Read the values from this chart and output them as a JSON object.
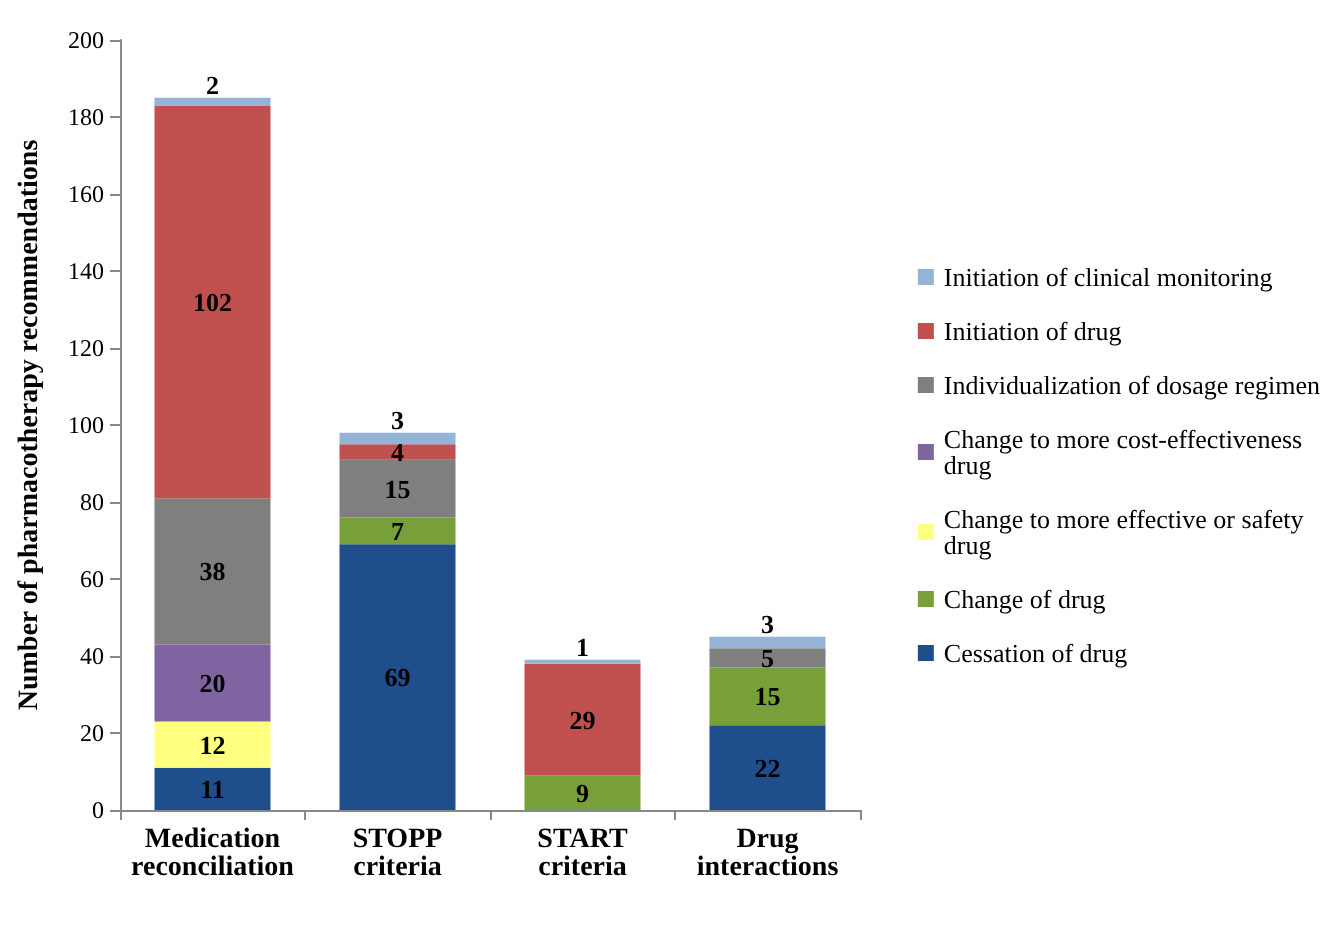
{
  "chart_data": {
    "type": "bar",
    "stacked": true,
    "ylabel": "Number of pharmacotherapy recommendations",
    "categories": [
      "Medication reconciliation",
      "STOPP criteria",
      "START criteria",
      "Drug interactions"
    ],
    "series": [
      {
        "name": "Cessation of drug",
        "color": "#1f4e8c",
        "values": [
          11,
          69,
          null,
          22
        ]
      },
      {
        "name": "Change of drug",
        "color": "#77a03a",
        "values": [
          null,
          7,
          9,
          15
        ]
      },
      {
        "name": "Change to more effective or safety drug",
        "color": "#ffff80",
        "values": [
          12,
          null,
          null,
          null
        ]
      },
      {
        "name": "Change to more cost-effectiveness drug",
        "color": "#8064a2",
        "values": [
          20,
          null,
          null,
          null
        ]
      },
      {
        "name": "Individualization of dosage regimen",
        "color": "#7f7f7f",
        "values": [
          38,
          15,
          null,
          5
        ]
      },
      {
        "name": "Initiation of drug",
        "color": "#c0504d",
        "values": [
          102,
          4,
          29,
          null
        ]
      },
      {
        "name": "Initiation of clinical monitoring",
        "color": "#95b3d7",
        "values": [
          2,
          3,
          1,
          3
        ]
      }
    ],
    "ylim": [
      0,
      200
    ],
    "yticks": [
      0,
      20,
      40,
      60,
      80,
      100,
      120,
      140,
      160,
      180,
      200
    ],
    "grid": false,
    "legend": "right",
    "data_labels": true
  }
}
